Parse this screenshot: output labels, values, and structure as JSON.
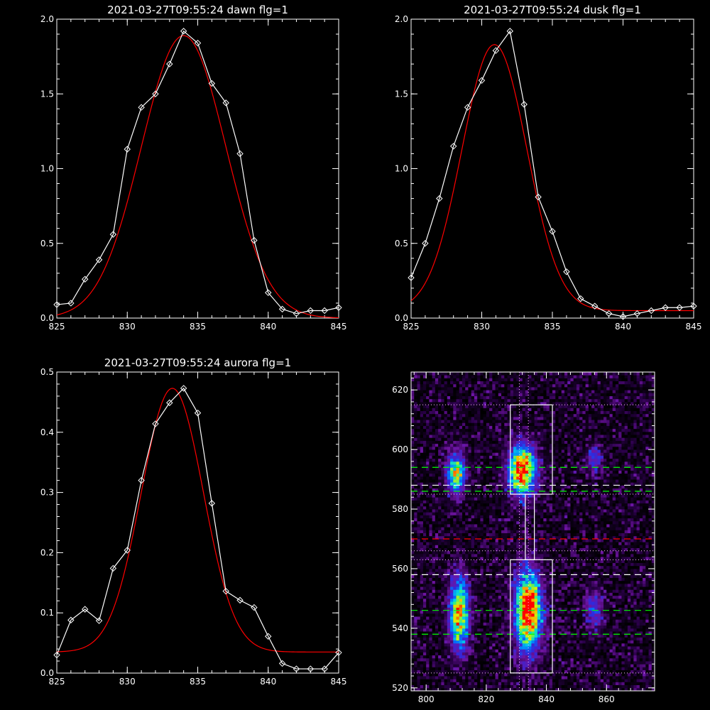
{
  "colors": {
    "background": "#000000",
    "axis": "#ffffff",
    "observed": "#ffffff",
    "fit": "#ff0000",
    "green_guides": "#00ff00",
    "white_guides": "#ffffff",
    "red_guide": "#ff0000",
    "dotted_guides": "#ffc0ff"
  },
  "chart_data": [
    {
      "type": "line",
      "title": "2021-03-27T09:55:24 dawn flg=1",
      "xlim": [
        825,
        845
      ],
      "ylim": [
        0,
        2.0
      ],
      "xticks": [
        "825",
        "830",
        "835",
        "840",
        "845"
      ],
      "yticks": [
        "0.0",
        "0.5",
        "1.0",
        "1.5",
        "2.0"
      ],
      "grid": false,
      "series": [
        {
          "role": "observed",
          "marker": "diamond",
          "x": [
            825,
            826,
            827,
            828,
            829,
            830,
            831,
            832,
            833,
            834,
            835,
            836,
            837,
            838,
            839,
            840,
            841,
            842,
            843,
            844,
            845
          ],
          "y": [
            0.09,
            0.1,
            0.26,
            0.39,
            0.56,
            1.13,
            1.41,
            1.5,
            1.7,
            1.92,
            1.84,
            1.57,
            1.44,
            1.1,
            0.52,
            0.17,
            0.06,
            0.03,
            0.05,
            0.05,
            0.07
          ]
        },
        {
          "role": "fit",
          "gaussian": {
            "amplitude": 1.89,
            "center": 834.0,
            "sigma": 3.0,
            "offset": 0.0
          }
        }
      ]
    },
    {
      "type": "line",
      "title": "2021-03-27T09:55:24 dusk flg=1",
      "xlim": [
        825,
        845
      ],
      "ylim": [
        0,
        2.0
      ],
      "xticks": [
        "825",
        "830",
        "835",
        "840",
        "845"
      ],
      "yticks": [
        "0.0",
        "0.5",
        "1.0",
        "1.5",
        "2.0"
      ],
      "grid": false,
      "series": [
        {
          "role": "observed",
          "marker": "diamond",
          "x": [
            825,
            826,
            827,
            828,
            829,
            830,
            831,
            832,
            833,
            834,
            835,
            836,
            837,
            838,
            839,
            840,
            841,
            842,
            843,
            844,
            845
          ],
          "y": [
            0.27,
            0.5,
            0.8,
            1.15,
            1.41,
            1.59,
            1.79,
            1.92,
            1.43,
            0.81,
            0.58,
            0.31,
            0.13,
            0.08,
            0.03,
            0.01,
            0.03,
            0.05,
            0.07,
            0.07,
            0.08
          ]
        },
        {
          "role": "fit",
          "gaussian": {
            "amplitude": 1.78,
            "center": 830.9,
            "sigma": 2.3,
            "offset": 0.05
          }
        }
      ]
    },
    {
      "type": "line",
      "title": "2021-03-27T09:55:24 aurora flg=1",
      "xlim": [
        825,
        845
      ],
      "ylim": [
        0,
        0.5
      ],
      "xticks": [
        "825",
        "830",
        "835",
        "840",
        "845"
      ],
      "yticks": [
        "0.0",
        "0.1",
        "0.2",
        "0.3",
        "0.4",
        "0.5"
      ],
      "grid": false,
      "series": [
        {
          "role": "observed",
          "marker": "diamond",
          "x": [
            825,
            826,
            827,
            828,
            829,
            830,
            831,
            832,
            833,
            834,
            835,
            836,
            837,
            838,
            839,
            840,
            841,
            842,
            843,
            844,
            845
          ],
          "y": [
            0.03,
            0.088,
            0.106,
            0.087,
            0.174,
            0.204,
            0.32,
            0.414,
            0.449,
            0.473,
            0.432,
            0.282,
            0.136,
            0.121,
            0.109,
            0.061,
            0.016,
            0.007,
            0.007,
            0.007,
            0.034
          ]
        },
        {
          "role": "fit",
          "gaussian": {
            "amplitude": 0.438,
            "center": 833.2,
            "sigma": 2.2,
            "offset": 0.035
          }
        }
      ]
    },
    {
      "type": "heatmap",
      "title": "",
      "xlim": [
        795,
        876
      ],
      "ylim": [
        519,
        626
      ],
      "xticks": [
        "800",
        "820",
        "840",
        "860"
      ],
      "yticks": [
        "520",
        "540",
        "560",
        "580",
        "600",
        "620"
      ],
      "sources": [
        {
          "x": 810,
          "y": 592,
          "sx": 2.0,
          "sy": 4.5,
          "amp": 0.75
        },
        {
          "x": 832,
          "y": 593,
          "sx": 3.0,
          "sy": 5.5,
          "amp": 1.0
        },
        {
          "x": 856,
          "y": 597,
          "sx": 1.8,
          "sy": 3.0,
          "amp": 0.3
        },
        {
          "x": 811,
          "y": 545,
          "sx": 2.2,
          "sy": 8.0,
          "amp": 0.8
        },
        {
          "x": 834,
          "y": 546,
          "sx": 3.0,
          "sy": 9.0,
          "amp": 1.0
        },
        {
          "x": 856,
          "y": 546,
          "sx": 2.0,
          "sy": 5.0,
          "amp": 0.3
        }
      ],
      "boxes": [
        {
          "x": [
            828,
            842
          ],
          "y": [
            585,
            615
          ]
        },
        {
          "x": [
            828,
            842
          ],
          "y": [
            525,
            563
          ]
        },
        {
          "x": [
            833,
            836
          ],
          "y": [
            563,
            585
          ]
        }
      ],
      "hlines": [
        {
          "y": 594,
          "style": "green-dashed"
        },
        {
          "y": 588,
          "style": "white-dashed"
        },
        {
          "y": 586,
          "style": "green-dashed"
        },
        {
          "y": 570,
          "style": "red-dashed"
        },
        {
          "y": 558,
          "style": "white-dashed"
        },
        {
          "y": 546,
          "style": "green-dashed"
        },
        {
          "y": 538,
          "style": "green-dashed"
        },
        {
          "y": 615,
          "style": "dotted"
        },
        {
          "y": 585,
          "style": "dotted"
        },
        {
          "y": 566,
          "style": "dotted"
        },
        {
          "y": 563,
          "style": "dotted"
        },
        {
          "y": 525,
          "style": "dotted"
        }
      ],
      "vlines": [
        {
          "x": 831,
          "style": "dotted"
        },
        {
          "x": 834,
          "style": "dotted"
        }
      ]
    }
  ]
}
